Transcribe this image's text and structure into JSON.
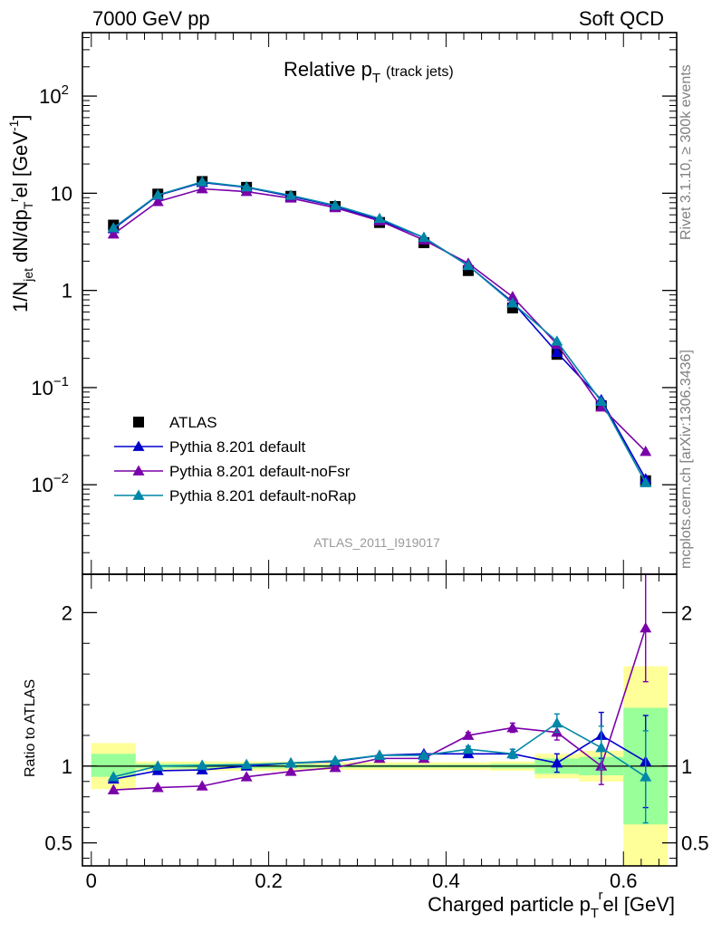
{
  "header": {
    "left": "7000 GeV pp",
    "right": "Soft QCD"
  },
  "side_labels": {
    "rivet": "Rivet 3.1.10, ≥ 300k events",
    "mcplots": "mcplots.cern.ch [arXiv:1306.3436]"
  },
  "plot_title": {
    "main": "Relative p",
    "sub": "T",
    "extra": "(track jets)"
  },
  "analysis_id": "ATLAS_2011_I919017",
  "colors": {
    "atlas": "#000000",
    "default": "#0000cc",
    "noFsr": "#7a00aa",
    "noRap": "#0087a8",
    "band_yellow": "#ffff99",
    "band_green": "#99ff99"
  },
  "chart_data": [
    {
      "type": "line",
      "name": "main",
      "yscale": "log",
      "xlim": [
        -0.01,
        0.66
      ],
      "ylim": [
        0.0012,
        450
      ],
      "ylabel": "1/N_jet dN/dp_T^rel [GeV^-1]",
      "y_ticks": [
        {
          "value": 0.01,
          "base": "10",
          "exp": "−2"
        },
        {
          "value": 0.1,
          "base": "10",
          "exp": "−1"
        },
        {
          "value": 1,
          "base": "1",
          "exp": ""
        },
        {
          "value": 10,
          "base": "10",
          "exp": ""
        },
        {
          "value": 100,
          "base": "10",
          "exp": "2"
        }
      ],
      "x": [
        0.025,
        0.075,
        0.125,
        0.175,
        0.225,
        0.275,
        0.325,
        0.375,
        0.425,
        0.475,
        0.525,
        0.575,
        0.625
      ],
      "series": [
        {
          "name": "ATLAS",
          "key": "atlas",
          "marker": "square",
          "values": [
            4.7,
            9.8,
            13.2,
            11.5,
            9.3,
            7.3,
            5.0,
            3.1,
            1.6,
            0.66,
            0.22,
            0.065,
            0.011
          ]
        },
        {
          "name": "Pythia 8.201 default",
          "key": "default",
          "marker": "triangle",
          "values": [
            4.3,
            9.5,
            12.9,
            11.5,
            9.3,
            7.4,
            5.3,
            3.5,
            1.8,
            0.76,
            0.23,
            0.075,
            0.0115
          ]
        },
        {
          "name": "Pythia 8.201 default-noFsr",
          "key": "noFsr",
          "marker": "triangle",
          "values": [
            3.8,
            8.2,
            11.1,
            10.4,
            8.9,
            7.1,
            5.2,
            3.3,
            1.9,
            0.86,
            0.28,
            0.063,
            0.022
          ]
        },
        {
          "name": "Pythia 8.201 default-noRap",
          "key": "noRap",
          "marker": "triangle",
          "values": [
            4.4,
            9.6,
            13.1,
            11.6,
            9.5,
            7.5,
            5.5,
            3.5,
            1.8,
            0.74,
            0.3,
            0.072,
            0.0105
          ]
        }
      ],
      "legend_position": "lower-left"
    },
    {
      "type": "line",
      "name": "ratio",
      "xlim": [
        -0.01,
        0.66
      ],
      "ylim": [
        0.35,
        2.25
      ],
      "ylabel": "Ratio to ATLAS",
      "xlabel": "Charged particle p_T^rel [GeV]",
      "y_ticks": [
        0.5,
        1,
        2
      ],
      "y_tick_labels": [
        "0.5",
        "1",
        "2"
      ],
      "x_ticks": [
        0,
        0.2,
        0.4,
        0.6
      ],
      "x_tick_labels": [
        "0",
        "0.2",
        "0.4",
        "0.6"
      ],
      "x": [
        0.025,
        0.075,
        0.125,
        0.175,
        0.225,
        0.275,
        0.325,
        0.375,
        0.425,
        0.475,
        0.525,
        0.575,
        0.625
      ],
      "bins": [
        [
          0,
          0.05
        ],
        [
          0.05,
          0.1
        ],
        [
          0.1,
          0.15
        ],
        [
          0.15,
          0.2
        ],
        [
          0.2,
          0.25
        ],
        [
          0.25,
          0.3
        ],
        [
          0.3,
          0.35
        ],
        [
          0.35,
          0.4
        ],
        [
          0.4,
          0.45
        ],
        [
          0.45,
          0.5
        ],
        [
          0.5,
          0.55
        ],
        [
          0.55,
          0.6
        ],
        [
          0.6,
          0.65
        ]
      ],
      "band_yellow": [
        [
          0.85,
          1.15
        ],
        [
          0.97,
          1.03
        ],
        [
          0.97,
          1.03
        ],
        [
          0.97,
          1.03
        ],
        [
          0.97,
          1.03
        ],
        [
          0.975,
          1.025
        ],
        [
          0.975,
          1.025
        ],
        [
          0.975,
          1.025
        ],
        [
          0.975,
          1.025
        ],
        [
          0.97,
          1.03
        ],
        [
          0.92,
          1.08
        ],
        [
          0.9,
          1.1
        ],
        [
          0.3,
          1.65
        ]
      ],
      "band_green": [
        [
          0.93,
          1.08
        ],
        [
          0.985,
          1.015
        ],
        [
          0.985,
          1.015
        ],
        [
          0.985,
          1.015
        ],
        [
          0.985,
          1.015
        ],
        [
          0.99,
          1.01
        ],
        [
          0.99,
          1.01
        ],
        [
          0.99,
          1.01
        ],
        [
          0.99,
          1.01
        ],
        [
          0.985,
          1.015
        ],
        [
          0.95,
          1.05
        ],
        [
          0.94,
          1.06
        ],
        [
          0.62,
          1.38
        ]
      ],
      "series": [
        {
          "key": "default",
          "values": [
            0.915,
            0.97,
            0.975,
            1.0,
            1.02,
            1.03,
            1.07,
            1.08,
            1.08,
            1.08,
            1.02,
            1.2,
            1.03
          ],
          "errors": [
            0.01,
            0.01,
            0.01,
            0.01,
            0.01,
            0.01,
            0.01,
            0.01,
            0.02,
            0.03,
            0.06,
            0.15,
            0.3
          ]
        },
        {
          "key": "noFsr",
          "values": [
            0.845,
            0.86,
            0.87,
            0.93,
            0.965,
            0.99,
            1.05,
            1.05,
            1.2,
            1.25,
            1.22,
            1.0,
            1.9
          ],
          "errors": [
            0.01,
            0.01,
            0.01,
            0.01,
            0.01,
            0.01,
            0.01,
            0.01,
            0.02,
            0.03,
            0.05,
            0.12,
            0.35
          ]
        },
        {
          "key": "noRap",
          "values": [
            0.93,
            1.0,
            1.005,
            1.01,
            1.02,
            1.035,
            1.07,
            1.07,
            1.11,
            1.08,
            1.28,
            1.12,
            0.93
          ],
          "errors": [
            0.01,
            0.01,
            0.01,
            0.01,
            0.01,
            0.01,
            0.01,
            0.01,
            0.02,
            0.03,
            0.06,
            0.14,
            0.3
          ]
        }
      ]
    }
  ]
}
